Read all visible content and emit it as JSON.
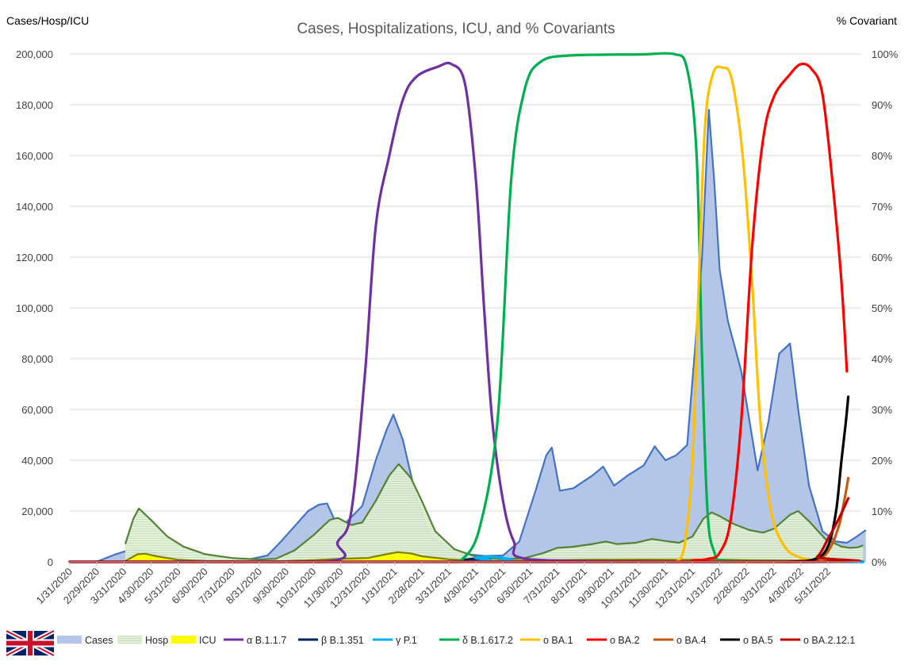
{
  "chart_data": {
    "type": "area+line",
    "title": "Cases, Hospitalizations, ICU, and % Covariants",
    "ylabel_left": "Cases/Hosp/ICU",
    "ylabel_right": "% Covariant",
    "ylim_left": [
      0,
      200000
    ],
    "ylim_right": [
      0,
      100
    ],
    "y_ticks_left": [
      "0",
      "20,000",
      "40,000",
      "60,000",
      "80,000",
      "100,000",
      "120,000",
      "140,000",
      "160,000",
      "180,000",
      "200,000"
    ],
    "y_ticks_right": [
      "0%",
      "10%",
      "20%",
      "30%",
      "40%",
      "50%",
      "60%",
      "70%",
      "80%",
      "90%",
      "100%"
    ],
    "x_ticks": [
      "1/31/2020",
      "2/29/2020",
      "3/31/2020",
      "4/30/2020",
      "5/31/2020",
      "6/30/2020",
      "7/31/2020",
      "8/31/2020",
      "9/30/2020",
      "10/31/2020",
      "11/30/2020",
      "12/31/2020",
      "1/31/2021",
      "2/28/2021",
      "3/31/2021",
      "4/30/2021",
      "5/31/2021",
      "6/30/2021",
      "7/31/2021",
      "8/31/2021",
      "9/30/2021",
      "10/31/2021",
      "11/30/2021",
      "12/31/2021",
      "1/31/2022",
      "2/28/2022",
      "3/31/2022",
      "4/30/2022",
      "5/31/2022"
    ],
    "x_index_note": "x values are month offsets from 1/31/2020 (0 = 1/31/2020, 28 = 5/31/2022)",
    "series_left": [
      {
        "name": "Cases",
        "kind": "area",
        "color": "#b4c6e7",
        "line_color": "#4472c4",
        "points": [
          [
            0,
            0
          ],
          [
            1,
            100
          ],
          [
            1.7,
            3000
          ],
          [
            2.3,
            5000
          ],
          [
            3,
            4000
          ],
          [
            3.8,
            1500
          ],
          [
            4.5,
            800
          ],
          [
            5.5,
            600
          ],
          [
            6.5,
            700
          ],
          [
            7.3,
            2500
          ],
          [
            7.8,
            8000
          ],
          [
            8.3,
            14000
          ],
          [
            8.8,
            20000
          ],
          [
            9.2,
            22500
          ],
          [
            9.5,
            23000
          ],
          [
            9.8,
            16000
          ],
          [
            10.2,
            15500
          ],
          [
            10.8,
            22000
          ],
          [
            11.3,
            40000
          ],
          [
            11.7,
            52000
          ],
          [
            11.95,
            58000
          ],
          [
            12.3,
            48000
          ],
          [
            12.8,
            25000
          ],
          [
            13.3,
            10000
          ],
          [
            14,
            5000
          ],
          [
            14.7,
            3000
          ],
          [
            15.3,
            2300
          ],
          [
            16,
            2500
          ],
          [
            16.6,
            8000
          ],
          [
            17.2,
            28000
          ],
          [
            17.6,
            42000
          ],
          [
            17.8,
            45000
          ],
          [
            18.1,
            28000
          ],
          [
            18.6,
            29000
          ],
          [
            19.3,
            34000
          ],
          [
            19.7,
            37500
          ],
          [
            20.1,
            30000
          ],
          [
            20.6,
            34000
          ],
          [
            21.2,
            38000
          ],
          [
            21.6,
            45500
          ],
          [
            22,
            40000
          ],
          [
            22.4,
            42000
          ],
          [
            22.8,
            46000
          ],
          [
            23.1,
            85000
          ],
          [
            23.35,
            120000
          ],
          [
            23.6,
            178000
          ],
          [
            23.8,
            150000
          ],
          [
            24,
            115000
          ],
          [
            24.3,
            95000
          ],
          [
            24.8,
            75000
          ],
          [
            25.4,
            36000
          ],
          [
            25.8,
            55000
          ],
          [
            26.2,
            82000
          ],
          [
            26.6,
            86000
          ],
          [
            26.9,
            60000
          ],
          [
            27.3,
            30000
          ],
          [
            27.8,
            12000
          ],
          [
            28.3,
            8000
          ],
          [
            28.7,
            7500
          ],
          [
            29,
            9500
          ],
          [
            29.4,
            12500
          ]
        ]
      },
      {
        "name": "Hosp",
        "kind": "area",
        "color": "#c5e0b4",
        "line_color": "#548235",
        "points": [
          [
            2.05,
            7000
          ],
          [
            2.35,
            17000
          ],
          [
            2.55,
            21000
          ],
          [
            3,
            16500
          ],
          [
            3.6,
            10000
          ],
          [
            4.2,
            6000
          ],
          [
            5,
            3000
          ],
          [
            6,
            1500
          ],
          [
            7,
            900
          ],
          [
            7.6,
            1200
          ],
          [
            8.3,
            4500
          ],
          [
            9,
            10500
          ],
          [
            9.6,
            16500
          ],
          [
            9.9,
            17300
          ],
          [
            10.4,
            14500
          ],
          [
            10.8,
            15500
          ],
          [
            11.3,
            24000
          ],
          [
            11.8,
            34000
          ],
          [
            12.15,
            38500
          ],
          [
            12.6,
            33000
          ],
          [
            13,
            24000
          ],
          [
            13.5,
            12000
          ],
          [
            14.2,
            5000
          ],
          [
            15,
            2000
          ],
          [
            16,
            1000
          ],
          [
            16.8,
            1500
          ],
          [
            17.5,
            3500
          ],
          [
            18,
            5500
          ],
          [
            18.5,
            5800
          ],
          [
            19.3,
            7000
          ],
          [
            19.8,
            8000
          ],
          [
            20.2,
            7000
          ],
          [
            20.9,
            7500
          ],
          [
            21.5,
            9000
          ],
          [
            22,
            8200
          ],
          [
            22.5,
            7500
          ],
          [
            23,
            10000
          ],
          [
            23.4,
            17000
          ],
          [
            23.7,
            19500
          ],
          [
            24,
            18000
          ],
          [
            24.5,
            15000
          ],
          [
            25.1,
            12500
          ],
          [
            25.6,
            11500
          ],
          [
            26,
            13000
          ],
          [
            26.6,
            18500
          ],
          [
            26.9,
            20000
          ],
          [
            27.3,
            16000
          ],
          [
            27.9,
            9000
          ],
          [
            28.5,
            6000
          ],
          [
            28.8,
            5500
          ],
          [
            29.1,
            5700
          ],
          [
            29.3,
            6500
          ]
        ]
      },
      {
        "name": "ICU",
        "kind": "area",
        "color": "#ffff00",
        "line_color": "#808000",
        "points": [
          [
            2,
            0
          ],
          [
            2.5,
            3000
          ],
          [
            2.8,
            3200
          ],
          [
            3.2,
            2200
          ],
          [
            4,
            800
          ],
          [
            5,
            300
          ],
          [
            7,
            200
          ],
          [
            8,
            300
          ],
          [
            9,
            700
          ],
          [
            10,
            1200
          ],
          [
            11,
            1500
          ],
          [
            11.6,
            2800
          ],
          [
            12.1,
            3800
          ],
          [
            12.6,
            3300
          ],
          [
            13,
            2200
          ],
          [
            14,
            1000
          ],
          [
            15,
            400
          ],
          [
            16,
            300
          ],
          [
            17,
            500
          ],
          [
            19,
            800
          ],
          [
            21,
            900
          ],
          [
            23,
            850
          ],
          [
            24,
            900
          ],
          [
            25,
            700
          ],
          [
            27,
            500
          ],
          [
            29.3,
            300
          ]
        ]
      }
    ],
    "series_right": [
      {
        "name": "α B.1.1.7",
        "color": "#7030a0",
        "points": [
          [
            0,
            0
          ],
          [
            9.3,
            0
          ],
          [
            9.9,
            4
          ],
          [
            10.4,
            10
          ],
          [
            10.9,
            37
          ],
          [
            11.3,
            66
          ],
          [
            11.8,
            80
          ],
          [
            12.3,
            91
          ],
          [
            12.8,
            95.5
          ],
          [
            13.6,
            97.5
          ],
          [
            14.1,
            98
          ],
          [
            14.6,
            94
          ],
          [
            15,
            75
          ],
          [
            15.3,
            50
          ],
          [
            15.6,
            28
          ],
          [
            16,
            12
          ],
          [
            16.4,
            4
          ],
          [
            17,
            0.5
          ],
          [
            22.5,
            0
          ]
        ]
      },
      {
        "name": "β B.1.351",
        "color": "#002060",
        "points": [
          [
            0,
            0
          ],
          [
            14,
            0
          ],
          [
            14.6,
            0.4
          ],
          [
            15,
            0.6
          ],
          [
            15.5,
            0.4
          ],
          [
            16.2,
            0
          ],
          [
            29.3,
            0
          ]
        ]
      },
      {
        "name": "γ P.1",
        "color": "#00b0f0",
        "points": [
          [
            0,
            0
          ],
          [
            14.3,
            0
          ],
          [
            15,
            0.8
          ],
          [
            15.6,
            1
          ],
          [
            16.3,
            0.5
          ],
          [
            17,
            0
          ],
          [
            29.3,
            0
          ]
        ]
      },
      {
        "name": "δ B.1.617.2",
        "color": "#00b050",
        "points": [
          [
            14.4,
            0
          ],
          [
            15.1,
            6
          ],
          [
            15.8,
            28
          ],
          [
            16.3,
            75
          ],
          [
            16.8,
            93
          ],
          [
            17.4,
            98.5
          ],
          [
            18.5,
            99.7
          ],
          [
            21,
            99.9
          ],
          [
            22.3,
            100
          ],
          [
            22.8,
            97
          ],
          [
            23.15,
            80
          ],
          [
            23.35,
            40
          ],
          [
            23.55,
            10
          ],
          [
            23.8,
            2
          ],
          [
            24.2,
            0.2
          ],
          [
            26.5,
            0
          ]
        ]
      },
      {
        "name": "ο BA.1",
        "color": "#ffc000",
        "points": [
          [
            22.4,
            0
          ],
          [
            22.7,
            3
          ],
          [
            23,
            20
          ],
          [
            23.2,
            50
          ],
          [
            23.45,
            85
          ],
          [
            23.75,
            96
          ],
          [
            24.1,
            97.3
          ],
          [
            24.45,
            95
          ],
          [
            24.85,
            80
          ],
          [
            25.2,
            55
          ],
          [
            25.5,
            28
          ],
          [
            25.9,
            10
          ],
          [
            26.4,
            3
          ],
          [
            27,
            0.8
          ],
          [
            27.8,
            0.2
          ],
          [
            28.4,
            0
          ]
        ]
      },
      {
        "name": "ο BA.2",
        "color": "#ff0000",
        "points": [
          [
            23,
            0.3
          ],
          [
            23.6,
            0.6
          ],
          [
            24,
            1.8
          ],
          [
            24.4,
            8
          ],
          [
            24.8,
            28
          ],
          [
            25.2,
            62
          ],
          [
            25.6,
            83
          ],
          [
            26,
            91.5
          ],
          [
            26.6,
            96
          ],
          [
            27,
            98
          ],
          [
            27.4,
            97
          ],
          [
            27.8,
            92
          ],
          [
            28.2,
            73
          ],
          [
            28.5,
            55
          ],
          [
            28.7,
            37.5
          ]
        ]
      },
      {
        "name": "ο BA.4",
        "color": "#c55a11",
        "points": [
          [
            26.5,
            0
          ],
          [
            27.5,
            0.3
          ],
          [
            28,
            2
          ],
          [
            28.4,
            7
          ],
          [
            28.6,
            12
          ],
          [
            28.75,
            16.5
          ]
        ]
      },
      {
        "name": "ο BA.5",
        "color": "#000000",
        "points": [
          [
            26.5,
            0
          ],
          [
            27.5,
            0.5
          ],
          [
            28,
            3
          ],
          [
            28.3,
            10
          ],
          [
            28.5,
            20
          ],
          [
            28.65,
            27
          ],
          [
            28.75,
            32.5
          ]
        ]
      },
      {
        "name": "ο BA.2.12.1",
        "color": "#c00000",
        "points": [
          [
            0,
            0
          ],
          [
            27,
            0
          ],
          [
            27.6,
            1
          ],
          [
            28,
            4.5
          ],
          [
            28.4,
            8.5
          ],
          [
            28.75,
            12.5
          ]
        ]
      }
    ],
    "legend": [
      {
        "name": "Cases",
        "style": "fill",
        "color": "#b4c6e7"
      },
      {
        "name": "Hosp",
        "style": "hatch",
        "color": "#c5e0b4"
      },
      {
        "name": "ICU",
        "style": "fill",
        "color": "#ffff00"
      },
      {
        "name": "α B.1.1.7",
        "style": "line",
        "color": "#7030a0"
      },
      {
        "name": "β B.1.351",
        "style": "line",
        "color": "#002060"
      },
      {
        "name": "γ P.1",
        "style": "line",
        "color": "#00b0f0"
      },
      {
        "name": "δ B.1.617.2",
        "style": "line",
        "color": "#00b050"
      },
      {
        "name": "ο BA.1",
        "style": "line",
        "color": "#ffc000"
      },
      {
        "name": "ο BA.2",
        "style": "line",
        "color": "#ff0000"
      },
      {
        "name": "ο BA.4",
        "style": "line",
        "color": "#c55a11"
      },
      {
        "name": "ο BA.5",
        "style": "line",
        "color": "#000000"
      },
      {
        "name": "ο BA.2.12.1",
        "style": "line",
        "color": "#c00000"
      }
    ],
    "flag": "uk-flag"
  }
}
